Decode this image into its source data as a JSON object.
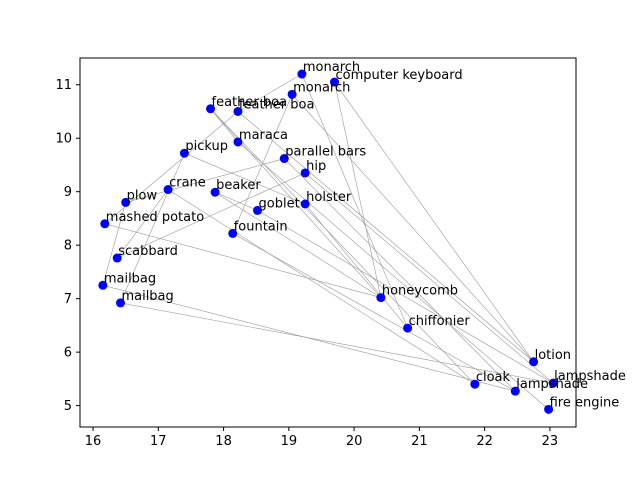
{
  "chart_data": {
    "type": "scatter",
    "title": "",
    "xlabel": "",
    "ylabel": "",
    "xlim": [
      15.8,
      23.4
    ],
    "ylim": [
      4.6,
      11.5
    ],
    "x_ticks": [
      16,
      17,
      18,
      19,
      20,
      21,
      22,
      23
    ],
    "y_ticks": [
      5,
      6,
      7,
      8,
      9,
      10,
      11
    ],
    "grid": false,
    "colors": {
      "point": "#0000ff",
      "edge": "#999999",
      "axis": "#000000"
    },
    "points": [
      {
        "label": "monarch",
        "x": 19.2,
        "y": 11.2
      },
      {
        "label": "computer keyboard",
        "x": 19.7,
        "y": 11.05
      },
      {
        "label": "monarch",
        "x": 19.05,
        "y": 10.82
      },
      {
        "label": "feather boa",
        "x": 17.8,
        "y": 10.55
      },
      {
        "label": "feather boa",
        "x": 18.22,
        "y": 10.5
      },
      {
        "label": "maraca",
        "x": 18.22,
        "y": 9.93
      },
      {
        "label": "pickup",
        "x": 17.4,
        "y": 9.72
      },
      {
        "label": "parallel bars",
        "x": 18.93,
        "y": 9.62
      },
      {
        "label": "hip",
        "x": 19.25,
        "y": 9.35
      },
      {
        "label": "crane",
        "x": 17.15,
        "y": 9.04
      },
      {
        "label": "beaker",
        "x": 17.87,
        "y": 8.99
      },
      {
        "label": "plow",
        "x": 16.5,
        "y": 8.8
      },
      {
        "label": "holster",
        "x": 19.25,
        "y": 8.77
      },
      {
        "label": "goblet",
        "x": 18.52,
        "y": 8.65
      },
      {
        "label": "mashed potato",
        "x": 16.18,
        "y": 8.4
      },
      {
        "label": "fountain",
        "x": 18.14,
        "y": 8.22
      },
      {
        "label": "scabbard",
        "x": 16.37,
        "y": 7.76
      },
      {
        "label": "mailbag",
        "x": 16.15,
        "y": 7.25
      },
      {
        "label": "honeycomb",
        "x": 20.41,
        "y": 7.02
      },
      {
        "label": "mailbag",
        "x": 16.42,
        "y": 6.92
      },
      {
        "label": "chiffonier",
        "x": 20.82,
        "y": 6.45
      },
      {
        "label": "lotion",
        "x": 22.75,
        "y": 5.82
      },
      {
        "label": "lampshade",
        "x": 23.05,
        "y": 5.42
      },
      {
        "label": "cloak",
        "x": 21.85,
        "y": 5.4
      },
      {
        "label": "lampshade",
        "x": 22.47,
        "y": 5.27
      },
      {
        "label": "fire engine",
        "x": 22.98,
        "y": 4.93
      }
    ],
    "edges": [
      [
        0,
        4
      ],
      [
        0,
        20
      ],
      [
        1,
        21
      ],
      [
        1,
        18
      ],
      [
        2,
        15
      ],
      [
        2,
        21
      ],
      [
        3,
        5
      ],
      [
        3,
        18
      ],
      [
        3,
        23
      ],
      [
        4,
        14
      ],
      [
        4,
        21
      ],
      [
        5,
        25
      ],
      [
        6,
        12
      ],
      [
        6,
        19
      ],
      [
        7,
        11
      ],
      [
        7,
        24
      ],
      [
        8,
        16
      ],
      [
        8,
        22
      ],
      [
        9,
        23
      ],
      [
        10,
        18
      ],
      [
        11,
        17
      ],
      [
        12,
        20
      ],
      [
        13,
        10
      ],
      [
        13,
        22
      ],
      [
        14,
        18
      ],
      [
        15,
        24
      ],
      [
        16,
        9
      ],
      [
        17,
        24
      ],
      [
        19,
        22
      ]
    ]
  }
}
